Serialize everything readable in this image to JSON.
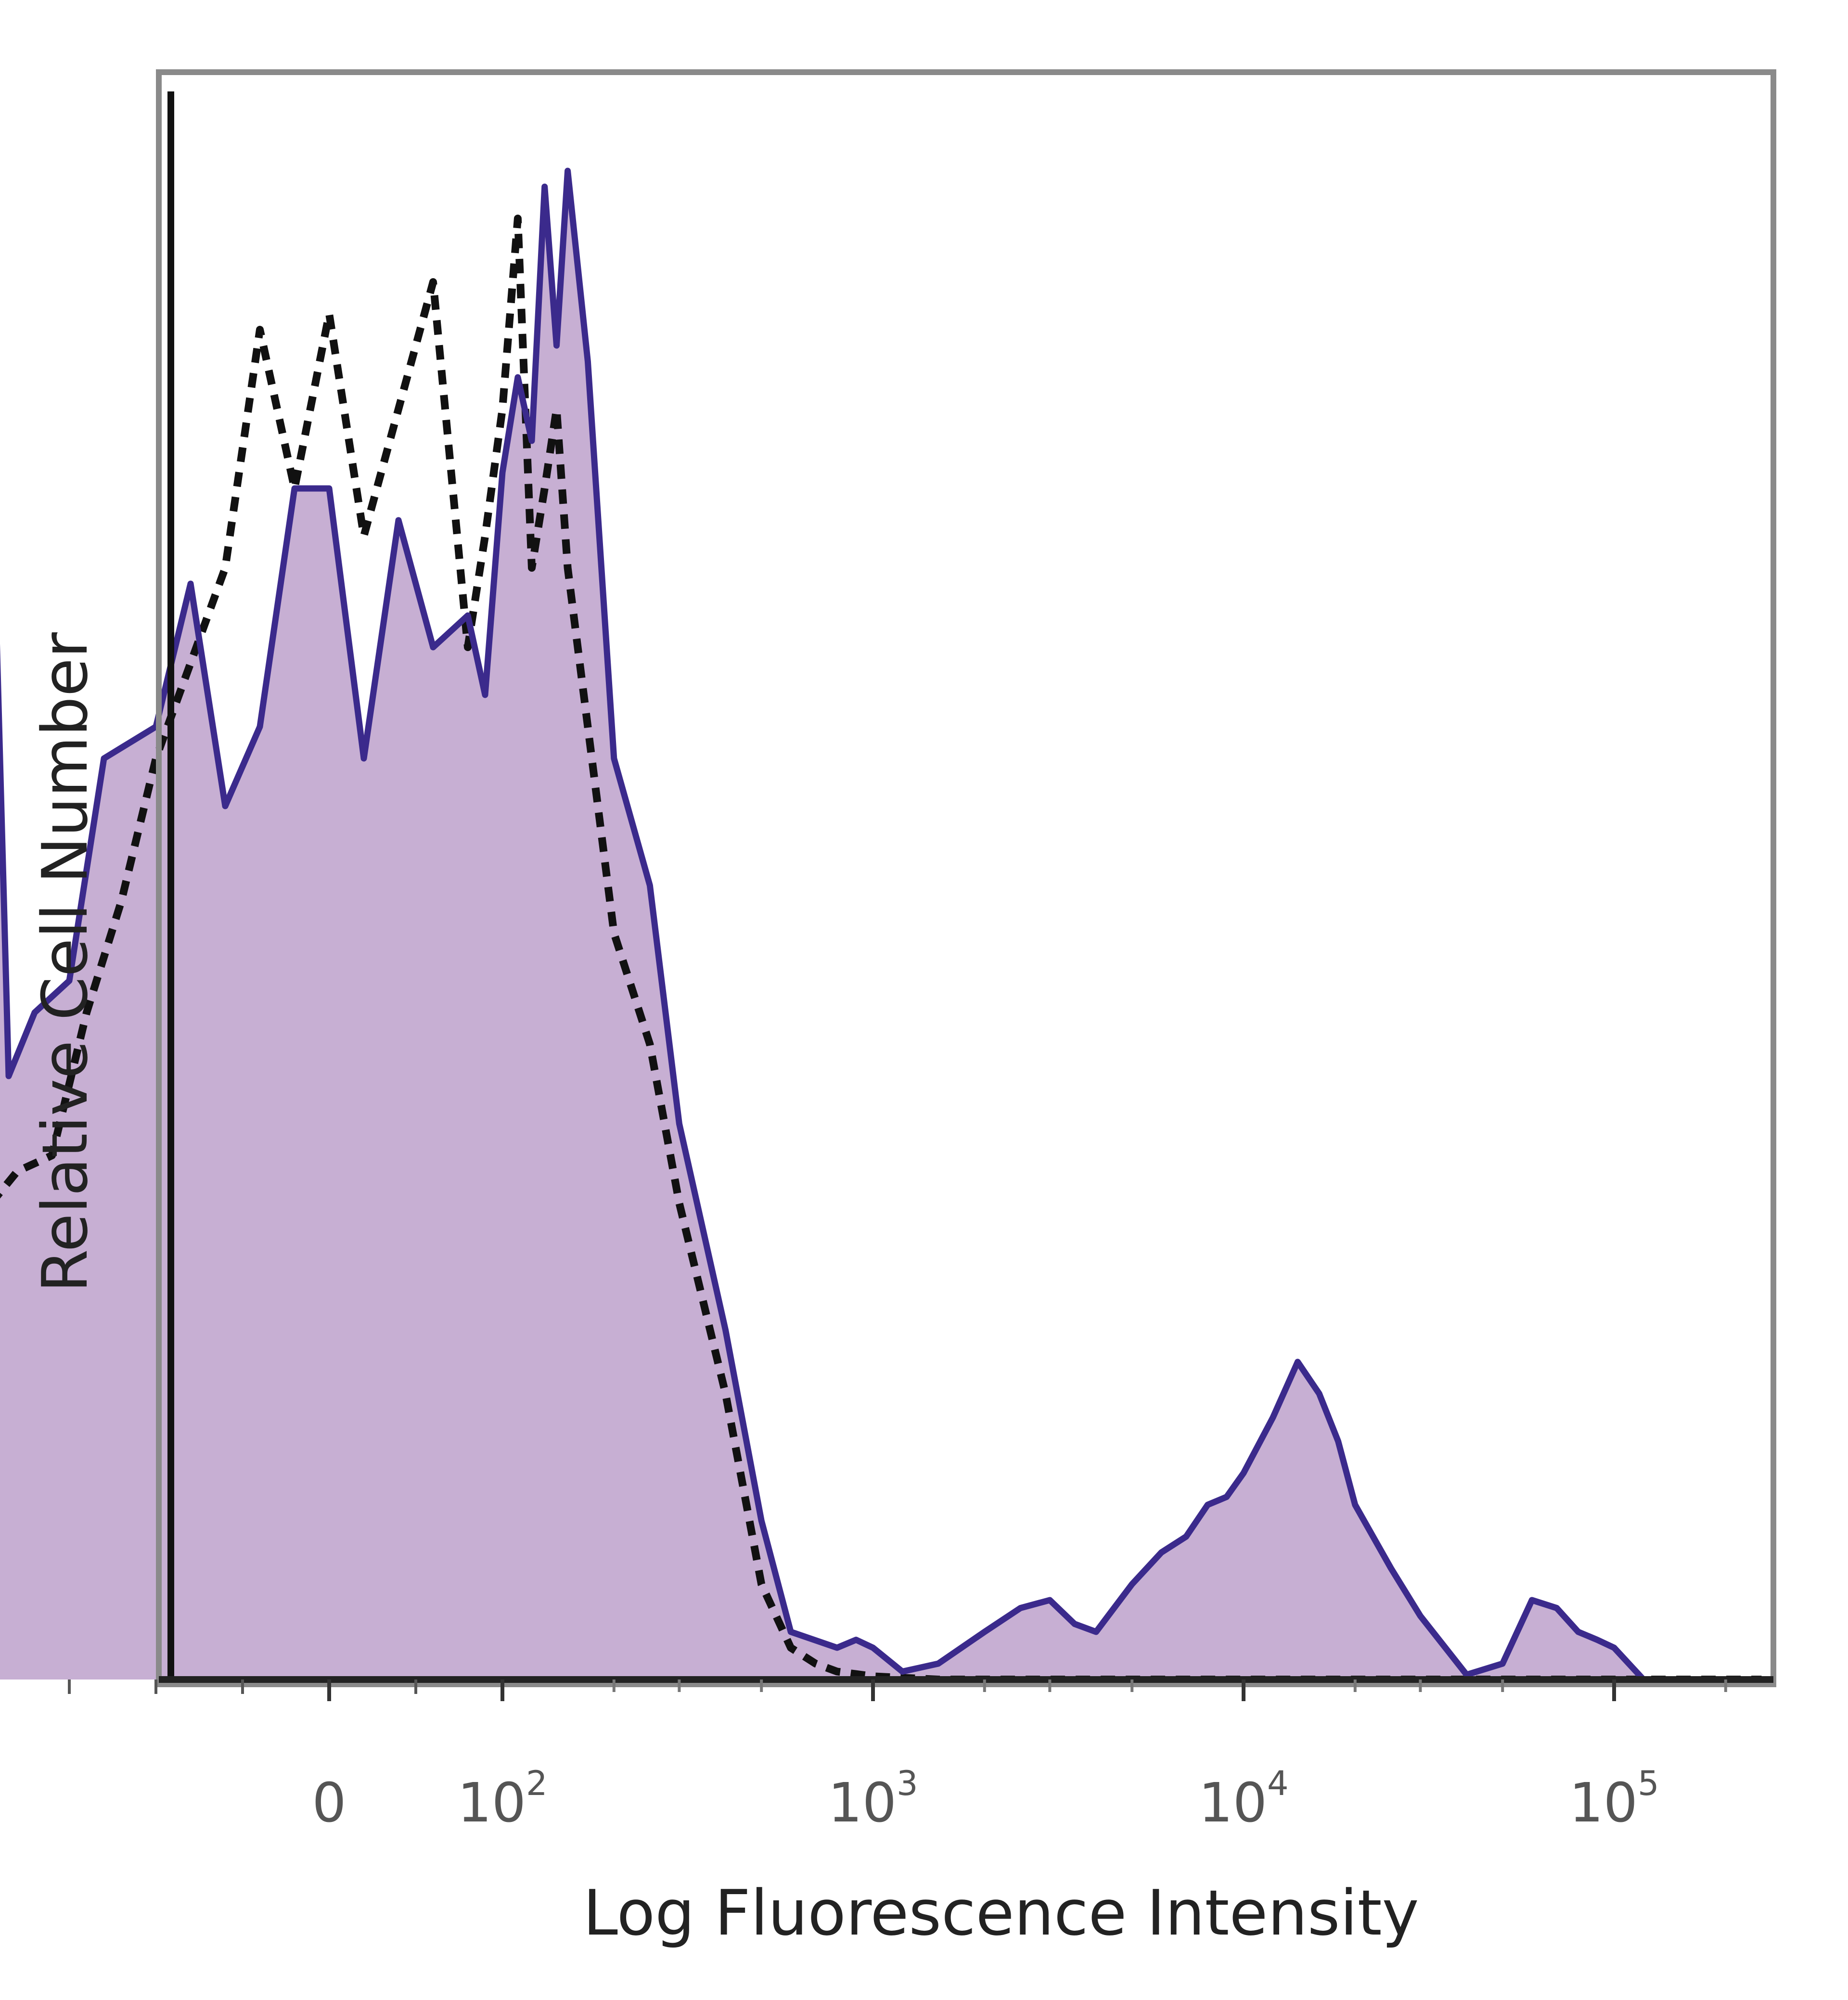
{
  "chart_data": {
    "type": "area",
    "xlabel": "Log Fluorescence Intensity",
    "ylabel": "Relative Cell Number",
    "x_scale": "biexponential",
    "xlim": [
      -200,
      250000
    ],
    "ylim": [
      0,
      1
    ],
    "grid": false,
    "legend": "none",
    "x_ticks": [
      {
        "value": 0,
        "base": "0",
        "exp": ""
      },
      {
        "value": 100,
        "base": "10",
        "exp": "2"
      },
      {
        "value": 1000,
        "base": "10",
        "exp": "3"
      },
      {
        "value": 10000,
        "base": "10",
        "exp": "4"
      },
      {
        "value": 100000,
        "base": "10",
        "exp": "5"
      }
    ],
    "series": [
      {
        "style": "filled-solid",
        "line_color": "#3b2a8c",
        "fill_color": "#c7afd3",
        "x": [
          -200,
          -195,
          -185,
          -170,
          -150,
          -130,
          -100,
          -80,
          -60,
          -40,
          -20,
          0,
          20,
          40,
          60,
          80,
          90,
          100,
          110,
          120,
          130,
          140,
          150,
          170,
          200,
          250,
          300,
          400,
          500,
          600,
          800,
          900,
          1000,
          1200,
          1500,
          2000,
          2500,
          3000,
          3500,
          4000,
          5000,
          6000,
          7000,
          8000,
          9000,
          10000,
          12000,
          14000,
          16000,
          18000,
          20000,
          25000,
          30000,
          40000,
          50000,
          60000,
          70000,
          80000,
          90000,
          100000,
          120000,
          150000,
          200000,
          250000
        ],
        "values": [
          0.0,
          0.78,
          0.38,
          0.42,
          0.44,
          0.58,
          0.6,
          0.69,
          0.55,
          0.6,
          0.75,
          0.75,
          0.58,
          0.73,
          0.65,
          0.67,
          0.62,
          0.76,
          0.82,
          0.78,
          0.94,
          0.84,
          0.95,
          0.83,
          0.58,
          0.5,
          0.35,
          0.22,
          0.1,
          0.03,
          0.02,
          0.025,
          0.02,
          0.005,
          0.01,
          0.03,
          0.045,
          0.05,
          0.035,
          0.03,
          0.06,
          0.08,
          0.09,
          0.11,
          0.115,
          0.13,
          0.165,
          0.2,
          0.18,
          0.15,
          0.11,
          0.07,
          0.04,
          0.003,
          0.01,
          0.05,
          0.045,
          0.03,
          0.025,
          0.02,
          0.0,
          0.0,
          0.0,
          0.0
        ]
      },
      {
        "style": "dashed",
        "line_color": "#111111",
        "x": [
          -200,
          -195,
          -180,
          -160,
          -140,
          -120,
          -100,
          -80,
          -60,
          -40,
          -20,
          0,
          20,
          40,
          60,
          80,
          90,
          100,
          110,
          120,
          130,
          140,
          150,
          170,
          200,
          250,
          300,
          400,
          500,
          600,
          700,
          800,
          1000,
          1500,
          3000,
          10000,
          50000,
          250000
        ],
        "values": [
          0.0,
          0.3,
          0.32,
          0.33,
          0.42,
          0.49,
          0.58,
          0.64,
          0.7,
          0.85,
          0.75,
          0.86,
          0.72,
          0.8,
          0.88,
          0.65,
          0.72,
          0.8,
          0.92,
          0.7,
          0.75,
          0.8,
          0.7,
          0.6,
          0.47,
          0.4,
          0.3,
          0.18,
          0.06,
          0.02,
          0.01,
          0.005,
          0.002,
          0.0,
          0.0,
          0.0,
          0.0,
          0.0
        ]
      }
    ]
  }
}
